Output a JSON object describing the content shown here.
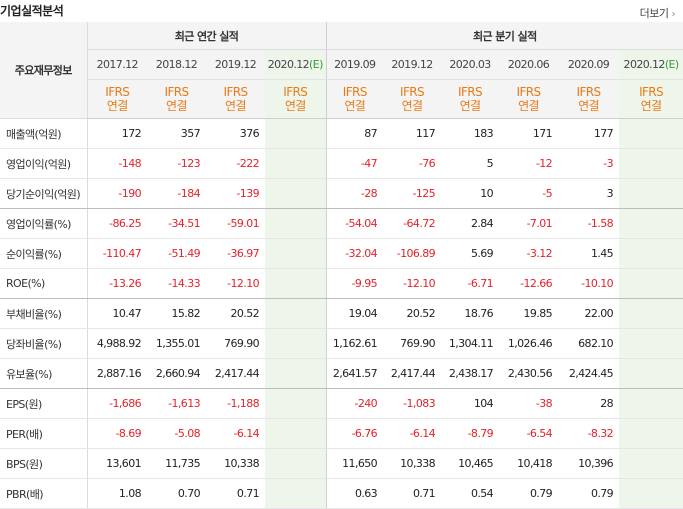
{
  "header": {
    "title": "기업실적분석",
    "more_label": "더보기",
    "more_icon": "chevron-right-icon"
  },
  "table": {
    "row_header_label": "주요재무정보",
    "annual_group_label": "최근 연간 실적",
    "quarter_group_label": "최근 분기 실적",
    "annual_periods": [
      "2017.12",
      "2018.12",
      "2019.12",
      "2020.12"
    ],
    "quarter_periods": [
      "2019.09",
      "2019.12",
      "2020.03",
      "2020.06",
      "2020.09",
      "2020.12"
    ],
    "estimate_mark": "(E)",
    "ifrs_label": "IFRS",
    "consolidated_label": "연결",
    "rows": [
      {
        "label": "매출액(억원)",
        "values": [
          "172",
          "357",
          "376",
          "",
          "87",
          "117",
          "183",
          "171",
          "177",
          ""
        ]
      },
      {
        "label": "영업이익(억원)",
        "values": [
          "-148",
          "-123",
          "-222",
          "",
          "-47",
          "-76",
          "5",
          "-12",
          "-3",
          ""
        ]
      },
      {
        "label": "당기순이익(억원)",
        "values": [
          "-190",
          "-184",
          "-139",
          "",
          "-28",
          "-125",
          "10",
          "-5",
          "3",
          ""
        ]
      },
      {
        "label": "영업이익률(%)",
        "values": [
          "-86.25",
          "-34.51",
          "-59.01",
          "",
          "-54.04",
          "-64.72",
          "2.84",
          "-7.01",
          "-1.58",
          ""
        ]
      },
      {
        "label": "순이익률(%)",
        "values": [
          "-110.47",
          "-51.49",
          "-36.97",
          "",
          "-32.04",
          "-106.89",
          "5.69",
          "-3.12",
          "1.45",
          ""
        ]
      },
      {
        "label": "ROE(%)",
        "values": [
          "-13.26",
          "-14.33",
          "-12.10",
          "",
          "-9.95",
          "-12.10",
          "-6.71",
          "-12.66",
          "-10.10",
          ""
        ]
      },
      {
        "label": "부채비율(%)",
        "values": [
          "10.47",
          "15.82",
          "20.52",
          "",
          "19.04",
          "20.52",
          "18.76",
          "19.85",
          "22.00",
          ""
        ]
      },
      {
        "label": "당좌비율(%)",
        "values": [
          "4,988.92",
          "1,355.01",
          "769.90",
          "",
          "1,162.61",
          "769.90",
          "1,304.11",
          "1,026.46",
          "682.10",
          ""
        ]
      },
      {
        "label": "유보율(%)",
        "values": [
          "2,887.16",
          "2,660.94",
          "2,417.44",
          "",
          "2,641.57",
          "2,417.44",
          "2,438.17",
          "2,430.56",
          "2,424.45",
          ""
        ]
      },
      {
        "label": "EPS(원)",
        "values": [
          "-1,686",
          "-1,613",
          "-1,188",
          "",
          "-240",
          "-1,083",
          "104",
          "-38",
          "28",
          ""
        ]
      },
      {
        "label": "PER(배)",
        "values": [
          "-8.69",
          "-5.08",
          "-6.14",
          "",
          "-6.76",
          "-6.14",
          "-8.79",
          "-6.54",
          "-8.32",
          ""
        ]
      },
      {
        "label": "BPS(원)",
        "values": [
          "13,601",
          "11,735",
          "10,338",
          "",
          "11,650",
          "10,338",
          "10,465",
          "10,418",
          "10,396",
          ""
        ]
      },
      {
        "label": "PBR(배)",
        "values": [
          "1.08",
          "0.70",
          "0.71",
          "",
          "0.63",
          "0.71",
          "0.54",
          "0.79",
          "0.79",
          ""
        ]
      }
    ]
  },
  "colors": {
    "negative": "#e3222c",
    "ifrs": "#e87b16",
    "estimate_bg": "#eef6ec",
    "estimate_mark": "#3a9a3a"
  }
}
